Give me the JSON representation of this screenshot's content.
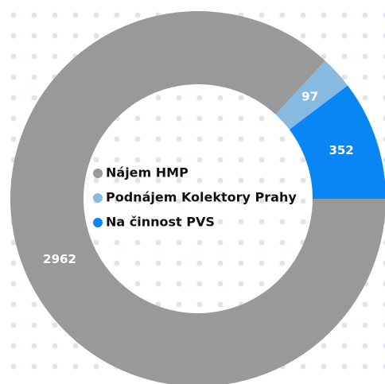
{
  "chart_data": {
    "type": "donut",
    "categories": [
      "Nájem HMP",
      "Podnájem Kolektory Prahy",
      "Na činnost PVS"
    ],
    "values": [
      2962,
      97,
      352
    ],
    "colors": [
      "#999999",
      "#88b9e0",
      "#0886f6"
    ]
  }
}
